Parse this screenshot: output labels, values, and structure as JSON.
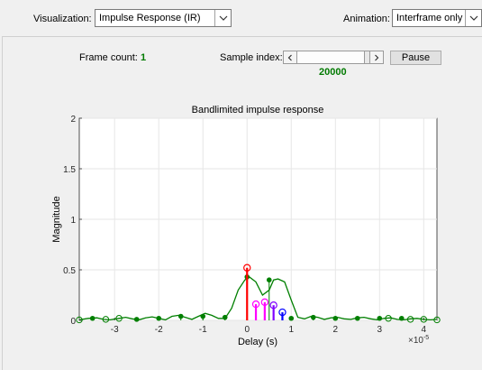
{
  "toolbar": {
    "visualization_label": "Visualization:",
    "visualization_value": "Impulse Response (IR)",
    "animation_label": "Animation:",
    "animation_value": "Interframe only"
  },
  "controls": {
    "frame_count_label": "Frame count:",
    "frame_count_value": "1",
    "sample_index_label": "Sample index:",
    "sample_index_value": "20000",
    "pause_label": "Pause"
  },
  "colors": {
    "stem_green": "#007f00",
    "stem_red": "#ff0000",
    "stem_magenta": "#ff00ff",
    "stem_purple": "#8000ff",
    "stem_blue": "#0000ff"
  },
  "chart_data": {
    "type": "line",
    "title": "Bandlimited impulse response",
    "xlabel": "Delay (s)",
    "ylabel": "Magnitude",
    "x_exponent_label": "×10",
    "x_exponent_power": "-5",
    "xlim": [
      -3.8,
      4.3
    ],
    "ylim": [
      0,
      2
    ],
    "x_ticks": [
      -3,
      -2,
      -1,
      0,
      1,
      2,
      3,
      4
    ],
    "y_ticks": [
      0,
      0.5,
      1,
      1.5,
      2
    ],
    "x_tick_labels": [
      "-3",
      "-2",
      "-1",
      "0",
      "1",
      "2",
      "3",
      "4"
    ],
    "y_tick_labels": [
      "0",
      "0.5",
      "1",
      "1.5",
      "2"
    ],
    "grid": true,
    "curve": {
      "x": [
        -3.8,
        -3.6,
        -3.4,
        -3.25,
        -3.1,
        -2.9,
        -2.75,
        -2.6,
        -2.45,
        -2.3,
        -2.15,
        -2.0,
        -1.85,
        -1.7,
        -1.55,
        -1.4,
        -1.25,
        -1.1,
        -0.95,
        -0.8,
        -0.65,
        -0.5,
        -0.35,
        -0.2,
        -0.05,
        0.05,
        0.2,
        0.35,
        0.5,
        0.6,
        0.7,
        0.85,
        1.0,
        1.15,
        1.3,
        1.45,
        1.6,
        1.75,
        1.9,
        2.05,
        2.2,
        2.35,
        2.5,
        2.65,
        2.8,
        2.95,
        3.1,
        3.25,
        3.4,
        3.55,
        3.7,
        3.85,
        4.0,
        4.15,
        4.3
      ],
      "y": [
        0.005,
        0.02,
        0.025,
        0.01,
        0.005,
        0.02,
        0.03,
        0.015,
        0.005,
        0.025,
        0.035,
        0.02,
        0.005,
        0.04,
        0.05,
        0.03,
        0.01,
        0.04,
        0.07,
        0.05,
        0.02,
        0.02,
        0.12,
        0.3,
        0.4,
        0.43,
        0.38,
        0.25,
        0.3,
        0.4,
        0.41,
        0.38,
        0.2,
        0.03,
        0.015,
        0.04,
        0.03,
        0.01,
        0.025,
        0.03,
        0.015,
        0.01,
        0.025,
        0.03,
        0.015,
        0.005,
        0.02,
        0.025,
        0.01,
        0.005,
        0.015,
        0.02,
        0.01,
        0.005,
        0.01
      ]
    },
    "filled_points_x": [
      -3.5,
      -2.5,
      -2.0,
      -1.5,
      -1.0,
      -0.5,
      0.0,
      0.5,
      1.0,
      1.5,
      2.0,
      2.5,
      3.0,
      3.5
    ],
    "filled_points_y": [
      0.02,
      0.01,
      0.02,
      0.04,
      0.04,
      0.03,
      0.43,
      0.4,
      0.02,
      0.03,
      0.02,
      0.02,
      0.02,
      0.02
    ],
    "open_points_x": [
      -3.8,
      -3.2,
      -2.9,
      3.2,
      3.7,
      4.0,
      4.3
    ],
    "open_points_y": [
      0.005,
      0.01,
      0.02,
      0.02,
      0.01,
      0.01,
      0.005
    ],
    "stems": [
      {
        "x": 0.0,
        "y": 0.52,
        "color": "#ff0000"
      },
      {
        "x": 0.2,
        "y": 0.16,
        "color": "#ff00ff"
      },
      {
        "x": 0.4,
        "y": 0.18,
        "color": "#ff00ff"
      },
      {
        "x": 0.6,
        "y": 0.15,
        "color": "#8000ff"
      },
      {
        "x": 0.8,
        "y": 0.08,
        "color": "#0000ff"
      }
    ]
  }
}
